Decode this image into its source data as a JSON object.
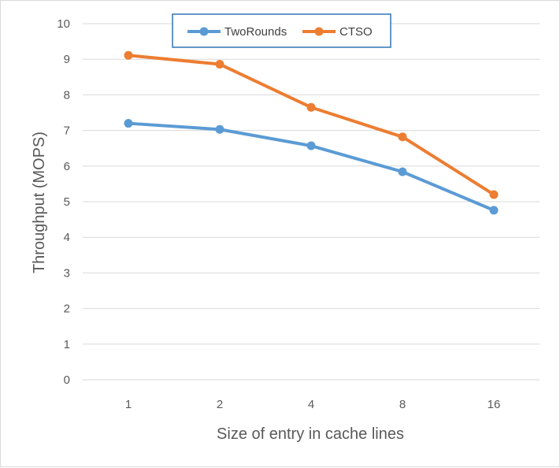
{
  "chart_data": {
    "type": "line",
    "title": "",
    "xlabel": "Size of entry in cache lines",
    "ylabel": "Throughput (MOPS)",
    "categories": [
      "1",
      "2",
      "4",
      "8",
      "16"
    ],
    "yticks": [
      "0",
      "1",
      "2",
      "3",
      "4",
      "5",
      "6",
      "7",
      "8",
      "9",
      "10"
    ],
    "ylim": [
      0,
      10
    ],
    "grid": true,
    "legend_position": "top",
    "series": [
      {
        "name": "TwoRounds",
        "color": "#5b9bd5",
        "values": [
          7.2,
          7.03,
          6.57,
          5.84,
          4.76
        ]
      },
      {
        "name": "CTSO",
        "color": "#ed7d31",
        "values": [
          9.11,
          8.86,
          7.65,
          6.82,
          5.2
        ]
      }
    ]
  }
}
